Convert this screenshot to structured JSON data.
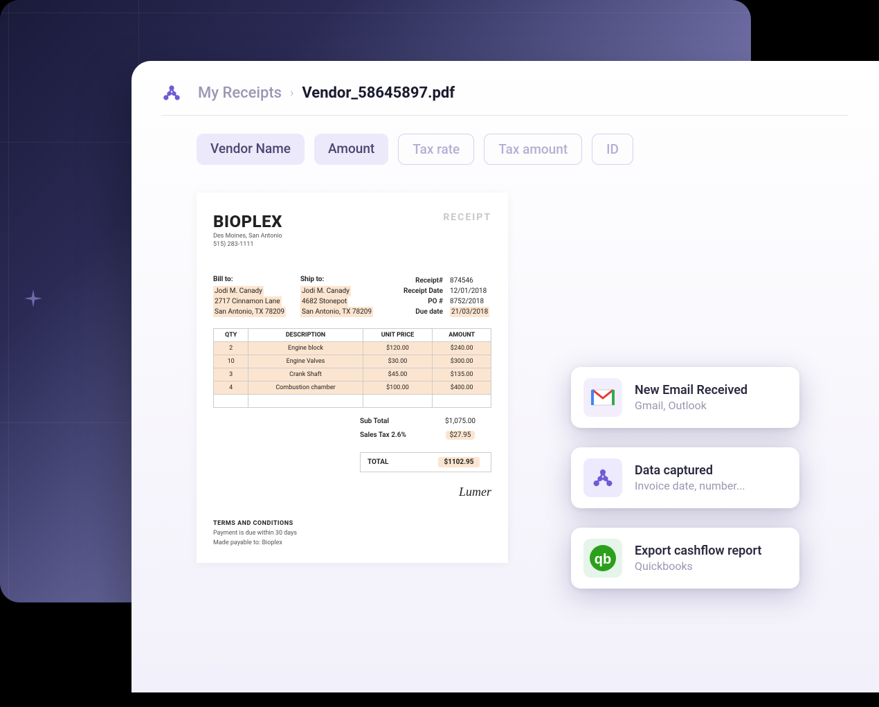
{
  "breadcrumb": {
    "root": "My Receipts",
    "current": "Vendor_58645897.pdf"
  },
  "chips": {
    "filled": [
      "Vendor Name",
      "Amount"
    ],
    "outline": [
      "Tax rate",
      "Tax amount",
      "ID"
    ]
  },
  "receipt": {
    "brand": "BIOPLEX",
    "brand_city": "Des Moines, San Antonio",
    "brand_phone": "515) 283-1111",
    "label": "RECEIPT",
    "bill_to": {
      "heading": "Bill to:",
      "name": "Jodi M. Canady",
      "line1": "2717 Cinnamon Lane",
      "line2": "San Antonio, TX 78209"
    },
    "ship_to": {
      "heading": "Ship to:",
      "name": "Jodi M. Canady",
      "line1": "4682 Stonepot",
      "line2": "San Antonio, TX 78209"
    },
    "meta": [
      {
        "k": "Receipt#",
        "v": "874546",
        "hl": false
      },
      {
        "k": "Receipt Date",
        "v": "12/01/2018",
        "hl": false
      },
      {
        "k": "PO #",
        "v": "8752/2018",
        "hl": false
      },
      {
        "k": "Due date",
        "v": "21/03/2018",
        "hl": true
      }
    ],
    "table": {
      "columns": [
        "QTY",
        "DESCRIPTION",
        "UNIT PRICE",
        "AMOUNT"
      ],
      "rows": [
        [
          "2",
          "Engine block",
          "$120.00",
          "$240.00"
        ],
        [
          "10",
          "Engine Valves",
          "$30.00",
          "$300.00"
        ],
        [
          "3",
          "Crank Shaft",
          "$45.00",
          "$135.00"
        ],
        [
          "4",
          "Combustion chamber",
          "$100.00",
          "$400.00"
        ]
      ],
      "highlight_color": "#fce5d0",
      "border_color": "#cccccc"
    },
    "totals": {
      "subtotal_label": "Sub Total",
      "subtotal_value": "$1,075.00",
      "tax_label": "Sales Tax 2.6%",
      "tax_value": "$27.95",
      "total_label": "TOTAL",
      "total_value": "$1102.95"
    },
    "signature": "Lumer",
    "terms": {
      "heading": "TERMS AND CONDITIONS",
      "line1": "Payment is due within 30 days",
      "line2": "Made payable to: Bioplex"
    }
  },
  "notifications": [
    {
      "title": "New Email Received",
      "sub": "Gmail, Outlook",
      "icon": "gmail",
      "icon_bg": "#f3eefc"
    },
    {
      "title": "Data captured",
      "sub": "Invoice date, number...",
      "icon": "logo",
      "icon_bg": "#edeafe"
    },
    {
      "title": "Export cashflow report",
      "sub": "Quickbooks",
      "icon": "quickbooks",
      "icon_bg": "#e6f5ea"
    }
  ],
  "colors": {
    "accent": "#6d5cd6",
    "chip_fill": "#ece9fa",
    "chip_outline": "#d6d0ef",
    "highlight": "#fce5d0"
  }
}
